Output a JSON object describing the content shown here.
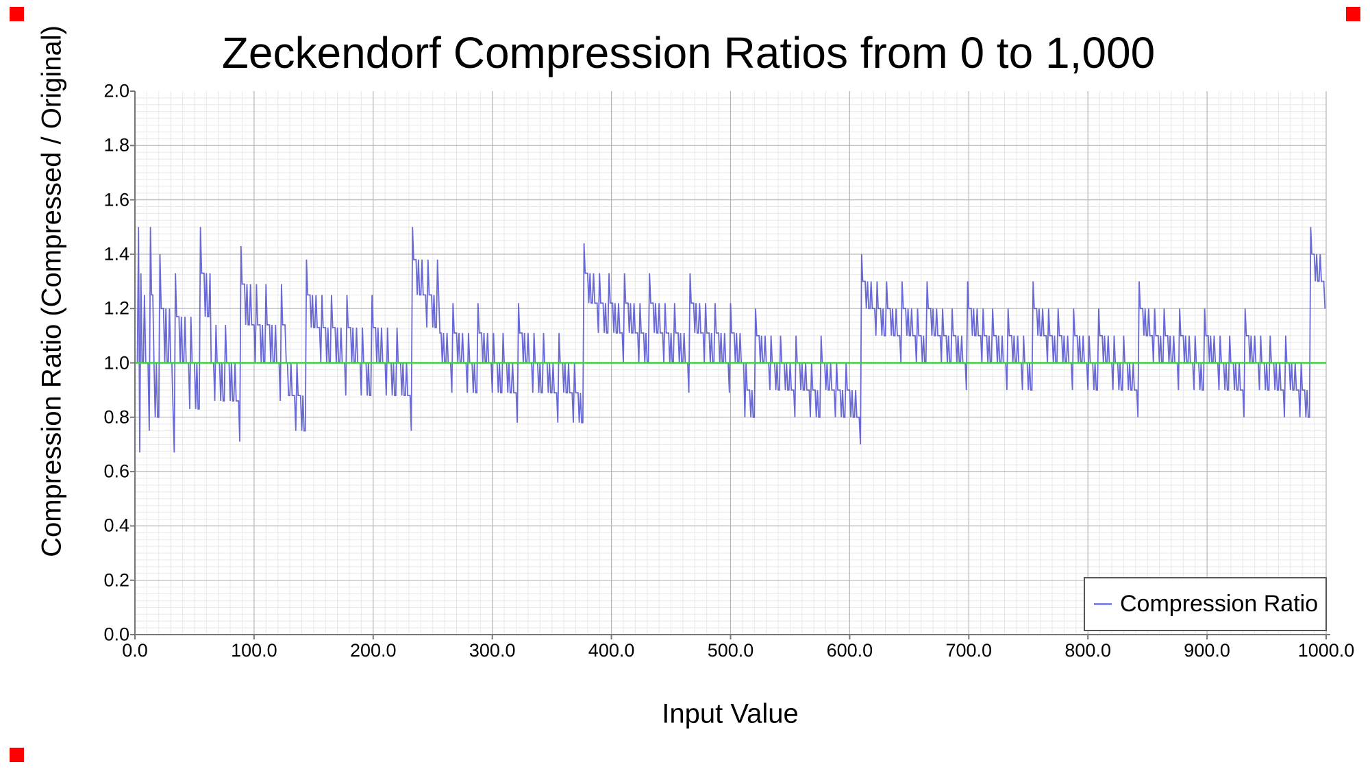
{
  "title": "Zeckendorf Compression Ratios from 0 to 1,000",
  "x_axis": {
    "label": "Input Value",
    "tick_labels": [
      "0.0",
      "100.0",
      "200.0",
      "300.0",
      "400.0",
      "500.0",
      "600.0",
      "700.0",
      "800.0",
      "900.0",
      "1000.0"
    ]
  },
  "y_axis": {
    "label": "Compression Ratio (Compressed / Original)",
    "tick_labels": [
      "0.0",
      "0.2",
      "0.4",
      "0.6",
      "0.8",
      "1.0",
      "1.2",
      "1.4",
      "1.6",
      "1.8",
      "2.0"
    ]
  },
  "legend": {
    "items": [
      {
        "label": "Compression Ratio"
      }
    ]
  },
  "colors": {
    "series": "#5a5ad2",
    "legend_sample": "#8a8ae0",
    "reference_line": "#3cd23c",
    "major_grid": "#b4b4b4",
    "minor_grid": "#e8e8e8",
    "axis": "#777777",
    "corner_marker": "#ff0000",
    "text": "#000000"
  },
  "corner_markers": [
    "top-left",
    "top-right",
    "bottom-left"
  ],
  "chart_data": {
    "type": "line",
    "title": "Zeckendorf Compression Ratios from 0 to 1,000",
    "xlabel": "Input Value",
    "ylabel": "Compression Ratio (Compressed / Original)",
    "xlim": [
      0,
      1000
    ],
    "ylim": [
      0.0,
      2.0
    ],
    "x_tick_step": 100,
    "y_tick_step": 0.2,
    "grid": {
      "x_minor_step": 10,
      "y_minor_step": 0.025,
      "minor_on": true,
      "major_on": true
    },
    "legend_position": "bottom-right",
    "reference_line_y": 1.0,
    "series": [
      {
        "name": "Compression Ratio",
        "x_start": 0,
        "x_step": 1,
        "values": [
          1,
          1,
          1,
          1.5,
          0.67,
          1.33,
          1,
          1,
          1.25,
          1,
          1,
          1,
          0.75,
          1.5,
          1.25,
          1.25,
          1,
          0.8,
          1,
          0.8,
          0.8,
          1.4,
          1.2,
          1.2,
          1.2,
          1,
          1.2,
          1,
          1,
          1.2,
          1,
          1,
          0.83,
          0.67,
          1.33,
          1.17,
          1.17,
          1.17,
          1,
          1.17,
          1,
          1,
          1.17,
          1,
          1,
          1,
          0.83,
          1.17,
          1,
          1,
          1,
          0.83,
          1,
          0.83,
          0.83,
          1.5,
          1.33,
          1.33,
          1.33,
          1.17,
          1.33,
          1.17,
          1.17,
          1.33,
          1,
          1,
          1,
          0.86,
          1.14,
          1,
          1,
          1,
          0.86,
          1,
          0.86,
          0.86,
          1.14,
          1,
          1,
          1,
          0.86,
          1,
          0.86,
          0.86,
          1,
          0.86,
          0.86,
          0.86,
          0.71,
          1.43,
          1.29,
          1.29,
          1.29,
          1.14,
          1.29,
          1.14,
          1.14,
          1.29,
          1.14,
          1.14,
          1.14,
          1,
          1.29,
          1.14,
          1.14,
          1.14,
          1,
          1.14,
          1,
          1,
          1.29,
          1.14,
          1.14,
          1.14,
          1,
          1.14,
          1,
          1,
          1.14,
          1,
          1,
          1,
          0.86,
          1.29,
          1.14,
          1.14,
          1.14,
          1,
          1,
          0.88,
          0.88,
          1,
          0.88,
          0.88,
          0.88,
          0.75,
          1,
          0.88,
          0.88,
          0.88,
          0.75,
          0.88,
          0.75,
          0.75,
          1.38,
          1.25,
          1.25,
          1.25,
          1.13,
          1.25,
          1.13,
          1.13,
          1.25,
          1.13,
          1.13,
          1.13,
          1,
          1.25,
          1.13,
          1.13,
          1.13,
          1,
          1.13,
          1,
          1,
          1.25,
          1.13,
          1.13,
          1.13,
          1,
          1.13,
          1,
          1,
          1.13,
          1,
          1,
          1,
          0.88,
          1.25,
          1.13,
          1.13,
          1.13,
          1,
          1.13,
          1,
          1,
          1.13,
          1,
          1,
          1,
          0.88,
          1.13,
          1,
          1,
          1,
          0.88,
          1,
          0.88,
          0.88,
          1.25,
          1.13,
          1.13,
          1.13,
          1,
          1.13,
          1,
          1,
          1.13,
          1,
          1,
          1,
          0.88,
          1.13,
          1,
          1,
          1,
          0.88,
          1,
          0.88,
          0.88,
          1.13,
          1,
          1,
          1,
          0.88,
          1,
          0.88,
          0.88,
          1,
          0.88,
          0.88,
          0.88,
          0.75,
          1.5,
          1.38,
          1.38,
          1.38,
          1.25,
          1.38,
          1.25,
          1.25,
          1.38,
          1.25,
          1.25,
          1.25,
          1.13,
          1.38,
          1.25,
          1.25,
          1.25,
          1.13,
          1.25,
          1.13,
          1.13,
          1.38,
          1.25,
          1.11,
          1.11,
          1,
          1.11,
          1,
          1,
          1.11,
          1,
          1,
          1,
          0.89,
          1.22,
          1.11,
          1.11,
          1.11,
          1,
          1.11,
          1,
          1,
          1.11,
          1,
          1,
          1,
          0.89,
          1.11,
          1,
          1,
          1,
          0.89,
          1,
          0.89,
          0.89,
          1.22,
          1.11,
          1.11,
          1.11,
          1,
          1.11,
          1,
          1,
          1.11,
          1,
          1,
          1,
          0.89,
          1.11,
          1,
          1,
          1,
          0.89,
          1,
          0.89,
          0.89,
          1.11,
          1,
          1,
          1,
          0.89,
          1,
          0.89,
          0.89,
          1,
          0.89,
          0.89,
          0.89,
          0.78,
          1.22,
          1.11,
          1.11,
          1.11,
          1,
          1.11,
          1,
          1,
          1.11,
          1,
          1,
          1,
          0.89,
          1.11,
          1,
          1,
          1,
          0.89,
          1,
          0.89,
          0.89,
          1.11,
          1,
          1,
          1,
          0.89,
          1,
          0.89,
          0.89,
          1,
          0.89,
          0.89,
          0.89,
          0.78,
          1.11,
          1,
          1,
          1,
          0.89,
          1,
          0.89,
          0.89,
          1,
          0.89,
          0.89,
          0.89,
          0.78,
          1,
          0.89,
          0.89,
          0.89,
          0.78,
          0.89,
          0.78,
          0.78,
          1.44,
          1.33,
          1.33,
          1.33,
          1.22,
          1.33,
          1.22,
          1.22,
          1.33,
          1.22,
          1.22,
          1.22,
          1.11,
          1.33,
          1.22,
          1.22,
          1.22,
          1.11,
          1.22,
          1.11,
          1.11,
          1.33,
          1.22,
          1.22,
          1.22,
          1.11,
          1.22,
          1.11,
          1.11,
          1.22,
          1.11,
          1.11,
          1.11,
          1,
          1.33,
          1.22,
          1.22,
          1.22,
          1.11,
          1.22,
          1.11,
          1.11,
          1.22,
          1.11,
          1.11,
          1.11,
          1,
          1.22,
          1.11,
          1.11,
          1.11,
          1,
          1.11,
          1,
          1,
          1.33,
          1.22,
          1.22,
          1.22,
          1.11,
          1.22,
          1.11,
          1.11,
          1.22,
          1.11,
          1.11,
          1.11,
          1,
          1.22,
          1.11,
          1.11,
          1.11,
          1,
          1.11,
          1,
          1,
          1.22,
          1.11,
          1.11,
          1.11,
          1,
          1.11,
          1,
          1,
          1.11,
          1,
          1,
          1,
          0.89,
          1.33,
          1.22,
          1.22,
          1.22,
          1.11,
          1.22,
          1.11,
          1.11,
          1.22,
          1.11,
          1.11,
          1.11,
          1,
          1.22,
          1.11,
          1.11,
          1.11,
          1,
          1.11,
          1,
          1,
          1.22,
          1.11,
          1.11,
          1.11,
          1,
          1.11,
          1,
          1,
          1.11,
          1,
          1,
          1,
          0.89,
          1.22,
          1.11,
          1.11,
          1.11,
          1,
          1.11,
          1,
          1,
          1.11,
          1,
          1,
          1,
          0.8,
          1,
          0.9,
          0.9,
          0.9,
          0.8,
          0.9,
          0.8,
          0.8,
          1.2,
          1.1,
          1.1,
          1.1,
          1,
          1.1,
          1,
          1,
          1.1,
          1,
          1,
          1,
          0.9,
          1.1,
          1,
          1,
          1,
          0.9,
          1,
          0.9,
          0.9,
          1.1,
          1,
          1,
          1,
          0.9,
          1,
          0.9,
          0.9,
          1,
          0.9,
          0.9,
          0.9,
          0.8,
          1.1,
          1,
          1,
          1,
          0.9,
          1,
          0.9,
          0.9,
          1,
          0.9,
          0.9,
          0.9,
          0.8,
          1,
          0.9,
          0.9,
          0.9,
          0.8,
          0.9,
          0.8,
          0.8,
          1.1,
          1,
          1,
          1,
          0.9,
          1,
          0.9,
          0.9,
          1,
          0.9,
          0.9,
          0.9,
          0.8,
          1,
          0.9,
          0.9,
          0.9,
          0.8,
          0.9,
          0.8,
          0.8,
          1,
          0.9,
          0.9,
          0.9,
          0.8,
          0.9,
          0.8,
          0.8,
          0.9,
          0.8,
          0.8,
          0.8,
          0.7,
          1.4,
          1.3,
          1.3,
          1.3,
          1.2,
          1.3,
          1.2,
          1.2,
          1.3,
          1.2,
          1.2,
          1.2,
          1.1,
          1.3,
          1.2,
          1.2,
          1.2,
          1.1,
          1.2,
          1.1,
          1.1,
          1.3,
          1.2,
          1.2,
          1.2,
          1.1,
          1.2,
          1.1,
          1.1,
          1.2,
          1.1,
          1.1,
          1.1,
          1,
          1.3,
          1.2,
          1.2,
          1.2,
          1.1,
          1.2,
          1.1,
          1.1,
          1.2,
          1.1,
          1.1,
          1.1,
          1,
          1.2,
          1.1,
          1.1,
          1.1,
          1,
          1.1,
          1,
          1,
          1.3,
          1.2,
          1.2,
          1.2,
          1.1,
          1.2,
          1.1,
          1.1,
          1.2,
          1.1,
          1.1,
          1.1,
          1,
          1.2,
          1.1,
          1.1,
          1.1,
          1,
          1.1,
          1,
          1,
          1.2,
          1.1,
          1.1,
          1.1,
          1,
          1.1,
          1,
          1,
          1.1,
          1,
          1,
          1,
          0.9,
          1.3,
          1.2,
          1.2,
          1.2,
          1.1,
          1.2,
          1.1,
          1.1,
          1.2,
          1.1,
          1.1,
          1.1,
          1,
          1.2,
          1.1,
          1.1,
          1.1,
          1,
          1.1,
          1,
          1,
          1.2,
          1.1,
          1.1,
          1.1,
          1,
          1.1,
          1,
          1,
          1.1,
          1,
          1,
          1,
          0.9,
          1.2,
          1.1,
          1.1,
          1.1,
          1,
          1.1,
          1,
          1,
          1.1,
          1,
          1,
          1,
          0.9,
          1.1,
          1,
          1,
          1,
          0.9,
          1,
          0.9,
          0.9,
          1.3,
          1.2,
          1.2,
          1.2,
          1.1,
          1.2,
          1.1,
          1.1,
          1.2,
          1.1,
          1.1,
          1.1,
          1,
          1.2,
          1.1,
          1.1,
          1.1,
          1,
          1.1,
          1,
          1,
          1.2,
          1.1,
          1.1,
          1.1,
          1,
          1.1,
          1,
          1,
          1.1,
          1,
          1,
          1,
          0.9,
          1.2,
          1.1,
          1.1,
          1.1,
          1,
          1.1,
          1,
          1,
          1.1,
          1,
          1,
          1,
          0.9,
          1.1,
          1,
          1,
          1,
          0.9,
          1,
          0.9,
          0.9,
          1.2,
          1.1,
          1.1,
          1.1,
          1,
          1.1,
          1,
          1,
          1.1,
          1,
          1,
          1,
          0.9,
          1.1,
          1,
          1,
          1,
          0.9,
          1,
          0.9,
          0.9,
          1.1,
          1,
          1,
          1,
          0.9,
          1,
          0.9,
          0.9,
          1,
          0.9,
          0.9,
          0.9,
          0.8,
          1.3,
          1.2,
          1.2,
          1.2,
          1.1,
          1.2,
          1.1,
          1.1,
          1.2,
          1.1,
          1.1,
          1.1,
          1,
          1.2,
          1.1,
          1.1,
          1.1,
          1,
          1.1,
          1,
          1,
          1.2,
          1.1,
          1.1,
          1.1,
          1,
          1.1,
          1,
          1,
          1.1,
          1,
          1,
          1,
          0.9,
          1.2,
          1.1,
          1.1,
          1.1,
          1,
          1.1,
          1,
          1,
          1.1,
          1,
          1,
          1,
          0.9,
          1.1,
          1,
          1,
          1,
          0.9,
          1,
          0.9,
          0.9,
          1.2,
          1.1,
          1.1,
          1.1,
          1,
          1.1,
          1,
          1,
          1.1,
          1,
          1,
          1,
          0.9,
          1.1,
          1,
          1,
          1,
          0.9,
          1,
          0.9,
          0.9,
          1.1,
          1,
          1,
          1,
          0.9,
          1,
          0.9,
          0.9,
          1,
          0.9,
          0.9,
          0.9,
          0.8,
          1.2,
          1.1,
          1.1,
          1.1,
          1,
          1.1,
          1,
          1,
          1.1,
          1,
          1,
          1,
          0.9,
          1.1,
          1,
          1,
          1,
          0.9,
          1,
          0.9,
          0.9,
          1.1,
          1,
          1,
          1,
          0.9,
          1,
          0.9,
          0.9,
          1,
          0.9,
          0.9,
          0.9,
          0.8,
          1.1,
          1,
          1,
          1,
          0.9,
          1,
          0.9,
          0.9,
          1,
          0.9,
          0.9,
          0.9,
          0.8,
          1,
          0.9,
          0.9,
          0.9,
          0.8,
          0.9,
          0.8,
          0.8,
          1.5,
          1.4,
          1.4,
          1.4,
          1.3,
          1.4,
          1.3,
          1.3,
          1.4,
          1.3,
          1.3,
          1.3,
          1.2
        ]
      }
    ]
  }
}
